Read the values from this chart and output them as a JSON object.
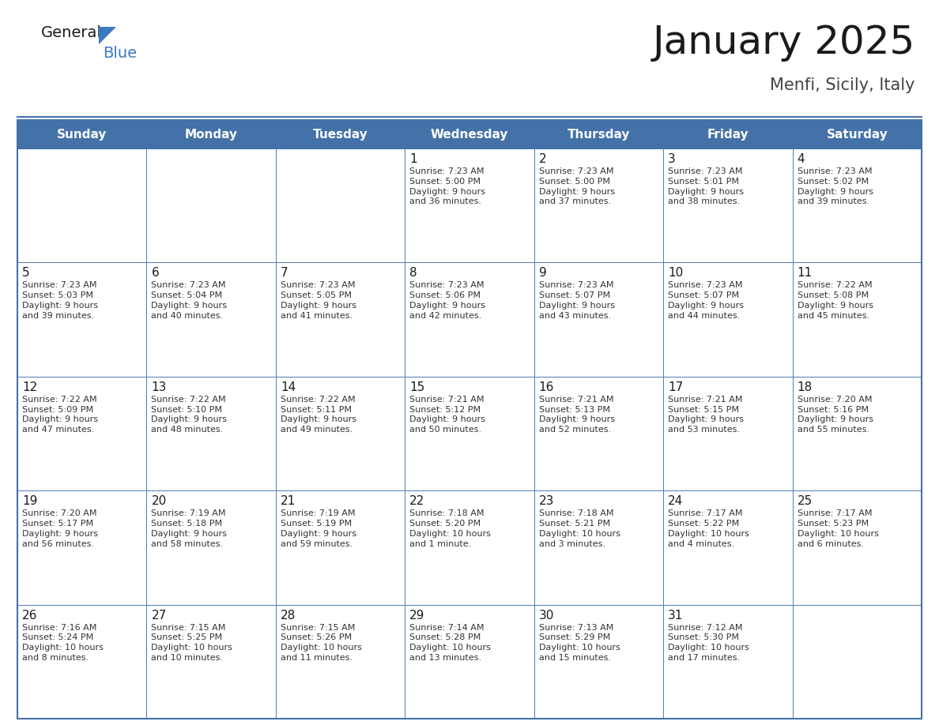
{
  "title": "January 2025",
  "subtitle": "Menfi, Sicily, Italy",
  "header_color": "#4472a8",
  "header_text_color": "#ffffff",
  "cell_bg": "#ffffff",
  "border_color": "#4472a8",
  "separator_color": "#4472a8",
  "day_headers": [
    "Sunday",
    "Monday",
    "Tuesday",
    "Wednesday",
    "Thursday",
    "Friday",
    "Saturday"
  ],
  "title_color": "#1a1a1a",
  "subtitle_color": "#444444",
  "day_number_color": "#1a1a1a",
  "cell_text_color": "#333333",
  "logo_general_color": "#1a1a1a",
  "logo_blue_color": "#3a7bbf",
  "logo_triangle_color": "#3a7bbf",
  "weeks": [
    [
      {
        "day": "",
        "sunrise": "",
        "sunset": "",
        "daylight": ""
      },
      {
        "day": "",
        "sunrise": "",
        "sunset": "",
        "daylight": ""
      },
      {
        "day": "",
        "sunrise": "",
        "sunset": "",
        "daylight": ""
      },
      {
        "day": "1",
        "sunrise": "Sunrise: 7:23 AM",
        "sunset": "Sunset: 5:00 PM",
        "daylight": "Daylight: 9 hours\nand 36 minutes."
      },
      {
        "day": "2",
        "sunrise": "Sunrise: 7:23 AM",
        "sunset": "Sunset: 5:00 PM",
        "daylight": "Daylight: 9 hours\nand 37 minutes."
      },
      {
        "day": "3",
        "sunrise": "Sunrise: 7:23 AM",
        "sunset": "Sunset: 5:01 PM",
        "daylight": "Daylight: 9 hours\nand 38 minutes."
      },
      {
        "day": "4",
        "sunrise": "Sunrise: 7:23 AM",
        "sunset": "Sunset: 5:02 PM",
        "daylight": "Daylight: 9 hours\nand 39 minutes."
      }
    ],
    [
      {
        "day": "5",
        "sunrise": "Sunrise: 7:23 AM",
        "sunset": "Sunset: 5:03 PM",
        "daylight": "Daylight: 9 hours\nand 39 minutes."
      },
      {
        "day": "6",
        "sunrise": "Sunrise: 7:23 AM",
        "sunset": "Sunset: 5:04 PM",
        "daylight": "Daylight: 9 hours\nand 40 minutes."
      },
      {
        "day": "7",
        "sunrise": "Sunrise: 7:23 AM",
        "sunset": "Sunset: 5:05 PM",
        "daylight": "Daylight: 9 hours\nand 41 minutes."
      },
      {
        "day": "8",
        "sunrise": "Sunrise: 7:23 AM",
        "sunset": "Sunset: 5:06 PM",
        "daylight": "Daylight: 9 hours\nand 42 minutes."
      },
      {
        "day": "9",
        "sunrise": "Sunrise: 7:23 AM",
        "sunset": "Sunset: 5:07 PM",
        "daylight": "Daylight: 9 hours\nand 43 minutes."
      },
      {
        "day": "10",
        "sunrise": "Sunrise: 7:23 AM",
        "sunset": "Sunset: 5:07 PM",
        "daylight": "Daylight: 9 hours\nand 44 minutes."
      },
      {
        "day": "11",
        "sunrise": "Sunrise: 7:22 AM",
        "sunset": "Sunset: 5:08 PM",
        "daylight": "Daylight: 9 hours\nand 45 minutes."
      }
    ],
    [
      {
        "day": "12",
        "sunrise": "Sunrise: 7:22 AM",
        "sunset": "Sunset: 5:09 PM",
        "daylight": "Daylight: 9 hours\nand 47 minutes."
      },
      {
        "day": "13",
        "sunrise": "Sunrise: 7:22 AM",
        "sunset": "Sunset: 5:10 PM",
        "daylight": "Daylight: 9 hours\nand 48 minutes."
      },
      {
        "day": "14",
        "sunrise": "Sunrise: 7:22 AM",
        "sunset": "Sunset: 5:11 PM",
        "daylight": "Daylight: 9 hours\nand 49 minutes."
      },
      {
        "day": "15",
        "sunrise": "Sunrise: 7:21 AM",
        "sunset": "Sunset: 5:12 PM",
        "daylight": "Daylight: 9 hours\nand 50 minutes."
      },
      {
        "day": "16",
        "sunrise": "Sunrise: 7:21 AM",
        "sunset": "Sunset: 5:13 PM",
        "daylight": "Daylight: 9 hours\nand 52 minutes."
      },
      {
        "day": "17",
        "sunrise": "Sunrise: 7:21 AM",
        "sunset": "Sunset: 5:15 PM",
        "daylight": "Daylight: 9 hours\nand 53 minutes."
      },
      {
        "day": "18",
        "sunrise": "Sunrise: 7:20 AM",
        "sunset": "Sunset: 5:16 PM",
        "daylight": "Daylight: 9 hours\nand 55 minutes."
      }
    ],
    [
      {
        "day": "19",
        "sunrise": "Sunrise: 7:20 AM",
        "sunset": "Sunset: 5:17 PM",
        "daylight": "Daylight: 9 hours\nand 56 minutes."
      },
      {
        "day": "20",
        "sunrise": "Sunrise: 7:19 AM",
        "sunset": "Sunset: 5:18 PM",
        "daylight": "Daylight: 9 hours\nand 58 minutes."
      },
      {
        "day": "21",
        "sunrise": "Sunrise: 7:19 AM",
        "sunset": "Sunset: 5:19 PM",
        "daylight": "Daylight: 9 hours\nand 59 minutes."
      },
      {
        "day": "22",
        "sunrise": "Sunrise: 7:18 AM",
        "sunset": "Sunset: 5:20 PM",
        "daylight": "Daylight: 10 hours\nand 1 minute."
      },
      {
        "day": "23",
        "sunrise": "Sunrise: 7:18 AM",
        "sunset": "Sunset: 5:21 PM",
        "daylight": "Daylight: 10 hours\nand 3 minutes."
      },
      {
        "day": "24",
        "sunrise": "Sunrise: 7:17 AM",
        "sunset": "Sunset: 5:22 PM",
        "daylight": "Daylight: 10 hours\nand 4 minutes."
      },
      {
        "day": "25",
        "sunrise": "Sunrise: 7:17 AM",
        "sunset": "Sunset: 5:23 PM",
        "daylight": "Daylight: 10 hours\nand 6 minutes."
      }
    ],
    [
      {
        "day": "26",
        "sunrise": "Sunrise: 7:16 AM",
        "sunset": "Sunset: 5:24 PM",
        "daylight": "Daylight: 10 hours\nand 8 minutes."
      },
      {
        "day": "27",
        "sunrise": "Sunrise: 7:15 AM",
        "sunset": "Sunset: 5:25 PM",
        "daylight": "Daylight: 10 hours\nand 10 minutes."
      },
      {
        "day": "28",
        "sunrise": "Sunrise: 7:15 AM",
        "sunset": "Sunset: 5:26 PM",
        "daylight": "Daylight: 10 hours\nand 11 minutes."
      },
      {
        "day": "29",
        "sunrise": "Sunrise: 7:14 AM",
        "sunset": "Sunset: 5:28 PM",
        "daylight": "Daylight: 10 hours\nand 13 minutes."
      },
      {
        "day": "30",
        "sunrise": "Sunrise: 7:13 AM",
        "sunset": "Sunset: 5:29 PM",
        "daylight": "Daylight: 10 hours\nand 15 minutes."
      },
      {
        "day": "31",
        "sunrise": "Sunrise: 7:12 AM",
        "sunset": "Sunset: 5:30 PM",
        "daylight": "Daylight: 10 hours\nand 17 minutes."
      },
      {
        "day": "",
        "sunrise": "",
        "sunset": "",
        "daylight": ""
      }
    ]
  ]
}
